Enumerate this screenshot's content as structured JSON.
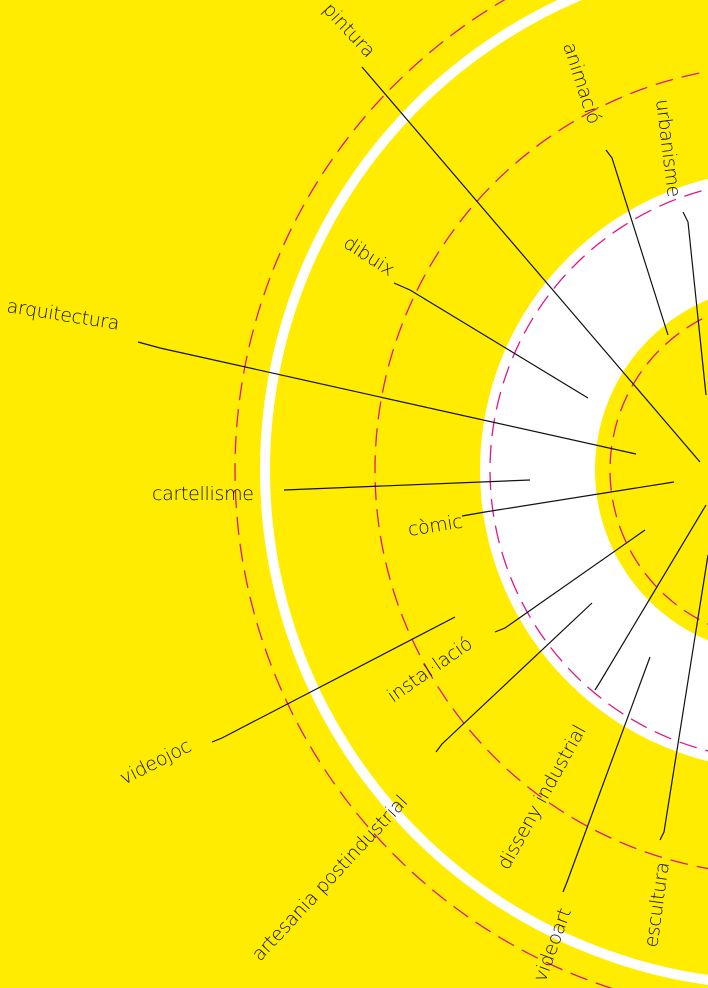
{
  "colors": {
    "background": "#ffec00",
    "ring_light": "#ffffff",
    "dashed_circle": "#e0158a",
    "line": "#111111"
  },
  "labels": {
    "pintura": "pintura",
    "animacio": "animació",
    "urbanisme": "urbanisme",
    "dibuix": "dibuix",
    "arquitectura": "arquitectura",
    "cartellisme": "cartellisme",
    "comic": "còmic",
    "installacio": "instal·lació",
    "videojoc": "videojoc",
    "artesania": "artesania postindustrial",
    "disseny": "disseny industrial",
    "videoart": "videoart",
    "escultura": "escultura"
  }
}
